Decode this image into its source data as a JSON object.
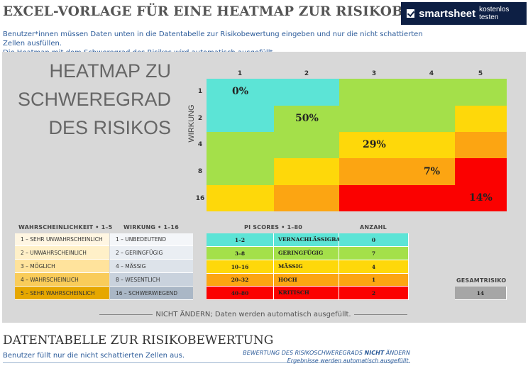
{
  "header": {
    "title": "EXCEL-VORLAGE FÜR EINE HEATMAP ZUR RISIKOBEWERTUNG",
    "ad_brand": "smartsheet",
    "ad_cta": "kostenlos testen",
    "intro_line1": "Benutzer*innen müssen Daten unten in die Datentabelle zur Risikobewertung eingeben und nur die nicht schattierten Zellen ausfüllen.",
    "intro_line2": "Die Heatmap mit dem Schweregrad des Risikos wird automatisch ausgefüllt."
  },
  "heatmap": {
    "title_line1": "HEATMAP ZU",
    "title_line2": "SCHWEREGRAD",
    "title_line3": "DES RISIKOS",
    "axis_label": "WIRKUNG",
    "col_headers": [
      "1",
      "2",
      "3",
      "4",
      "5"
    ],
    "row_headers": [
      "1",
      "2",
      "4",
      "8",
      "16"
    ],
    "pct_1": "0%",
    "pct_2": "50%",
    "pct_3": "29%",
    "pct_4": "7%",
    "pct_5": "14%",
    "colors": {
      "cyan": "#5ce4d6",
      "green": "#a4e04a",
      "yellow": "#fed80a",
      "orange": "#fca512",
      "red": "#fb0100"
    }
  },
  "legend": {
    "likelihood_header": "WAHRSCHEINLICHKEIT  •  1–5",
    "impact_header": "WIRKUNG  •  1–16",
    "likelihood": [
      "1 – SEHR UNWAHRSCHEINLICH",
      "2 – UNWAHRSCHEINLICH",
      "3 – MÖGLICH",
      "4 – WAHRSCHEINLICH",
      "5 – SEHR WAHRSCHEINLICH"
    ],
    "impact": [
      "1 – UNBEDEUTEND",
      "2 – GERINGFÜGIG",
      "4 – MÄSSIG",
      "8 – WESENTLICH",
      "16 – SCHWERWIEGEND"
    ]
  },
  "scores": {
    "header": "PI SCORES  •  1–80",
    "count_header": "ANZAHL",
    "rows": [
      {
        "range": "1–2",
        "label": "VERNACHLÄSSIGBAR",
        "count": "0"
      },
      {
        "range": "3–8",
        "label": "GERINGFÜGIG",
        "count": "7"
      },
      {
        "range": "10–16",
        "label": "MÄSSIG",
        "count": "4"
      },
      {
        "range": "20–32",
        "label": "HOCH",
        "count": "1"
      },
      {
        "range": "40–80",
        "label": "KRITISCH",
        "count": "2"
      }
    ],
    "total_header": "GESAMTRISIKO",
    "total_value": "14"
  },
  "note": "NICHT ÄNDERN; Daten werden automatisch ausgefüllt.",
  "datatable": {
    "title": "DATENTABELLE ZUR RISIKOBEWERTUNG",
    "subtitle": "Benutzer füllt nur die nicht schattierten Zellen aus.",
    "note_pre": "BEWERTUNG DES RISIKOSCHWEREGRADS ",
    "note_bold": "NICHT",
    "note_post": " ÄNDERN Ergebnisse werden automatisch ausgefüllt."
  }
}
